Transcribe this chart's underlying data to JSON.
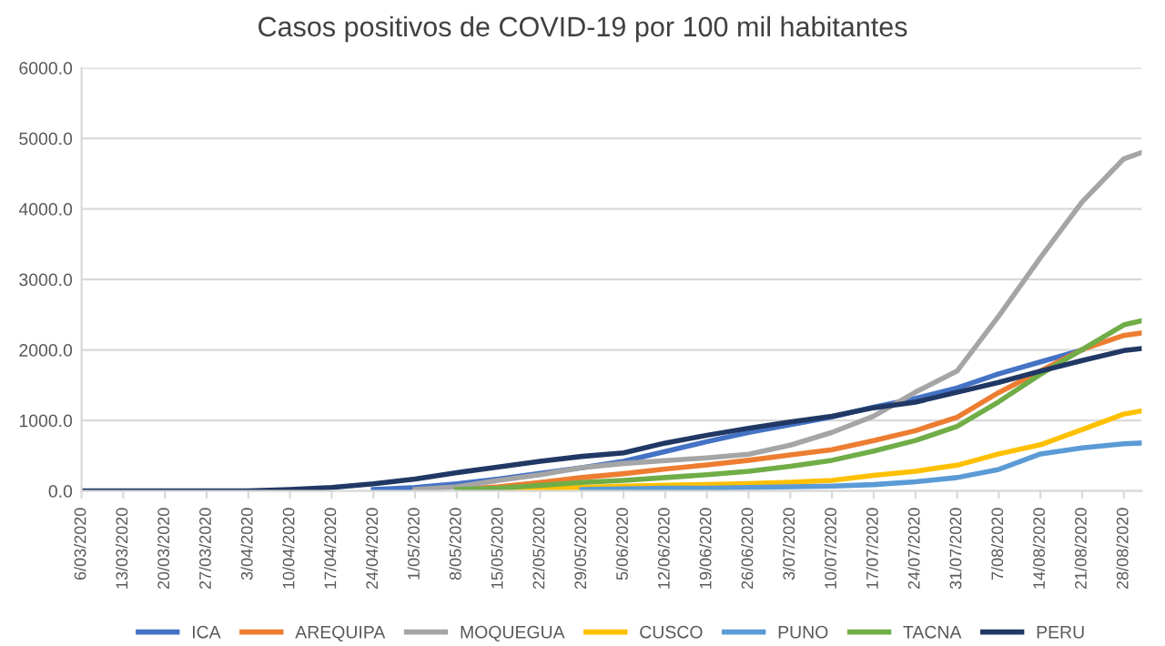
{
  "chart_data": {
    "type": "line",
    "title": "Casos positivos de COVID-19 por 100 mil habitantes",
    "x": [
      "2020-03-06",
      "2020-03-13",
      "2020-03-20",
      "2020-03-27",
      "2020-04-03",
      "2020-04-10",
      "2020-04-17",
      "2020-04-24",
      "2020-05-01",
      "2020-05-08",
      "2020-05-15",
      "2020-05-22",
      "2020-05-29",
      "2020-06-05",
      "2020-06-12",
      "2020-06-19",
      "2020-06-26",
      "2020-07-03",
      "2020-07-10",
      "2020-07-17",
      "2020-07-24",
      "2020-07-31",
      "2020-08-07",
      "2020-08-14",
      "2020-08-21",
      "2020-08-28",
      "2020-08-31"
    ],
    "series": [
      {
        "name": "ICA",
        "color": "#4472c4",
        "values": [
          null,
          null,
          null,
          null,
          null,
          null,
          null,
          20,
          50,
          100,
          170,
          250,
          330,
          420,
          560,
          700,
          830,
          940,
          1050,
          1190,
          1310,
          1460,
          1660,
          1830,
          2000,
          null,
          null
        ]
      },
      {
        "name": "AREQUIPA",
        "color": "#ed7d31",
        "values": [
          null,
          null,
          null,
          null,
          null,
          null,
          null,
          null,
          null,
          20,
          60,
          120,
          190,
          245,
          310,
          370,
          435,
          510,
          585,
          715,
          855,
          1045,
          1395,
          1700,
          2005,
          2205,
          2240
        ]
      },
      {
        "name": "MOQUEGUA",
        "color": "#a5a5a5",
        "values": [
          null,
          null,
          null,
          null,
          null,
          null,
          null,
          null,
          20,
          60,
          150,
          230,
          330,
          390,
          430,
          470,
          520,
          650,
          830,
          1060,
          1400,
          1700,
          2480,
          3310,
          4100,
          4710,
          4800
        ]
      },
      {
        "name": "CUSCO",
        "color": "#ffc000",
        "values": [
          null,
          null,
          null,
          null,
          null,
          null,
          null,
          null,
          null,
          null,
          20,
          40,
          50,
          70,
          80,
          90,
          105,
          125,
          150,
          220,
          280,
          365,
          525,
          655,
          870,
          1090,
          1135
        ]
      },
      {
        "name": "PUNO",
        "color": "#5b9bd5",
        "values": [
          null,
          null,
          null,
          null,
          null,
          null,
          null,
          null,
          null,
          null,
          null,
          null,
          20,
          30,
          40,
          40,
          50,
          60,
          70,
          90,
          130,
          190,
          305,
          525,
          610,
          670,
          680
        ]
      },
      {
        "name": "TACNA",
        "color": "#70ad47",
        "values": [
          null,
          null,
          null,
          null,
          null,
          null,
          null,
          null,
          null,
          20,
          40,
          80,
          120,
          150,
          190,
          230,
          280,
          350,
          435,
          565,
          715,
          915,
          1265,
          1655,
          2005,
          2355,
          2415
        ]
      },
      {
        "name": "PERU",
        "color": "#203864",
        "values": [
          0,
          0,
          0,
          0,
          0,
          20,
          50,
          100,
          170,
          260,
          340,
          420,
          490,
          540,
          680,
          790,
          890,
          980,
          1060,
          1180,
          1260,
          1400,
          1540,
          1700,
          1850,
          1990,
          2020
        ]
      }
    ],
    "xlim": [
      "2020-03-06",
      "2020-08-31"
    ],
    "xticks": [
      {
        "value": "2020-03-06",
        "label": "6/03/2020"
      },
      {
        "value": "2020-03-13",
        "label": "13/03/2020"
      },
      {
        "value": "2020-03-20",
        "label": "20/03/2020"
      },
      {
        "value": "2020-03-27",
        "label": "27/03/2020"
      },
      {
        "value": "2020-04-03",
        "label": "3/04/2020"
      },
      {
        "value": "2020-04-10",
        "label": "10/04/2020"
      },
      {
        "value": "2020-04-17",
        "label": "17/04/2020"
      },
      {
        "value": "2020-04-24",
        "label": "24/04/2020"
      },
      {
        "value": "2020-05-01",
        "label": "1/05/2020"
      },
      {
        "value": "2020-05-08",
        "label": "8/05/2020"
      },
      {
        "value": "2020-05-15",
        "label": "15/05/2020"
      },
      {
        "value": "2020-05-22",
        "label": "22/05/2020"
      },
      {
        "value": "2020-05-29",
        "label": "29/05/2020"
      },
      {
        "value": "2020-06-05",
        "label": "5/06/2020"
      },
      {
        "value": "2020-06-12",
        "label": "12/06/2020"
      },
      {
        "value": "2020-06-19",
        "label": "19/06/2020"
      },
      {
        "value": "2020-06-26",
        "label": "26/06/2020"
      },
      {
        "value": "2020-07-03",
        "label": "3/07/2020"
      },
      {
        "value": "2020-07-10",
        "label": "10/07/2020"
      },
      {
        "value": "2020-07-17",
        "label": "17/07/2020"
      },
      {
        "value": "2020-07-24",
        "label": "24/07/2020"
      },
      {
        "value": "2020-07-31",
        "label": "31/07/2020"
      },
      {
        "value": "2020-08-07",
        "label": "7/08/2020"
      },
      {
        "value": "2020-08-14",
        "label": "14/08/2020"
      },
      {
        "value": "2020-08-21",
        "label": "21/08/2020"
      },
      {
        "value": "2020-08-28",
        "label": "28/08/2020"
      }
    ],
    "ylim": [
      0,
      6000
    ],
    "yticks": [
      {
        "value": 0,
        "label": "0.0"
      },
      {
        "value": 1000,
        "label": "1000.0"
      },
      {
        "value": 2000,
        "label": "2000.0"
      },
      {
        "value": 3000,
        "label": "3000.0"
      },
      {
        "value": 4000,
        "label": "4000.0"
      },
      {
        "value": 5000,
        "label": "5000.0"
      },
      {
        "value": 6000,
        "label": "6000.0"
      }
    ],
    "grid": "y",
    "legend": "bottom",
    "marker": "none",
    "line_style": "solid"
  }
}
